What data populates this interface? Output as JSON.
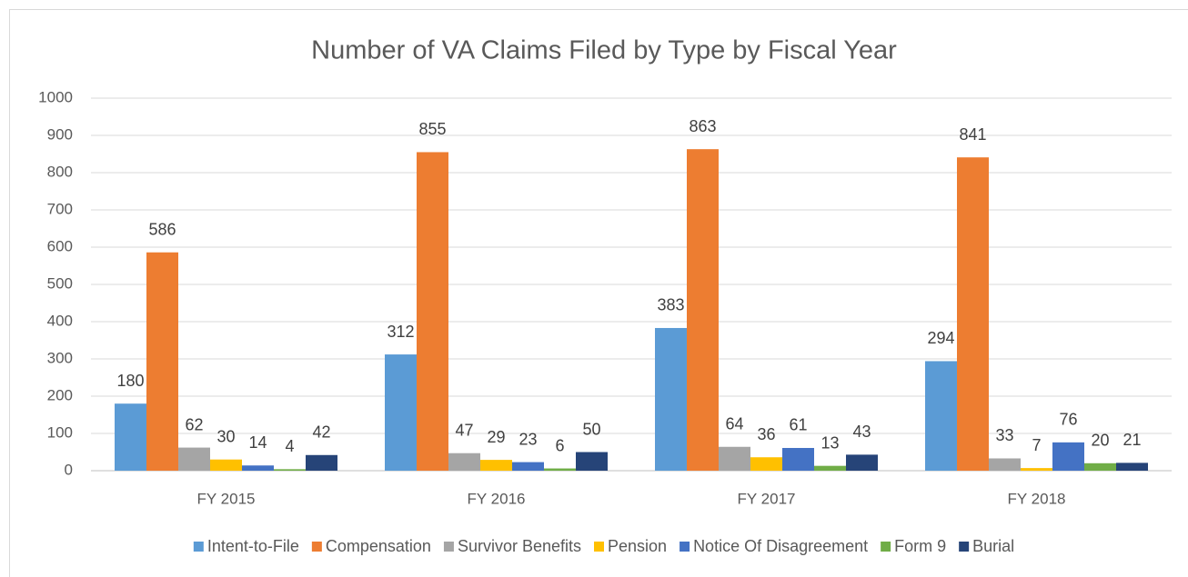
{
  "chart_data": {
    "type": "bar",
    "title": "Number of VA Claims Filed by Type by Fiscal Year",
    "categories": [
      "FY 2015",
      "FY 2016",
      "FY 2017",
      "FY 2018"
    ],
    "series": [
      {
        "name": "Intent-to-File",
        "color": "#5b9bd5",
        "values": [
          180,
          312,
          383,
          294
        ]
      },
      {
        "name": "Compensation",
        "color": "#ed7d31",
        "values": [
          586,
          855,
          863,
          841
        ]
      },
      {
        "name": "Survivor Benefits",
        "color": "#a5a5a5",
        "values": [
          62,
          47,
          64,
          33
        ]
      },
      {
        "name": "Pension",
        "color": "#ffc000",
        "values": [
          30,
          29,
          36,
          7
        ]
      },
      {
        "name": "Notice Of Disagreement",
        "color": "#4472c4",
        "values": [
          14,
          23,
          61,
          76
        ]
      },
      {
        "name": "Form 9",
        "color": "#70ad47",
        "values": [
          4,
          6,
          13,
          20
        ]
      },
      {
        "name": "Burial",
        "color": "#264478",
        "values": [
          42,
          50,
          43,
          21
        ]
      }
    ],
    "ylim": [
      0,
      1000
    ],
    "yticks": [
      0,
      100,
      200,
      300,
      400,
      500,
      600,
      700,
      800,
      900,
      1000
    ],
    "grid": true,
    "legend": "bottom"
  }
}
